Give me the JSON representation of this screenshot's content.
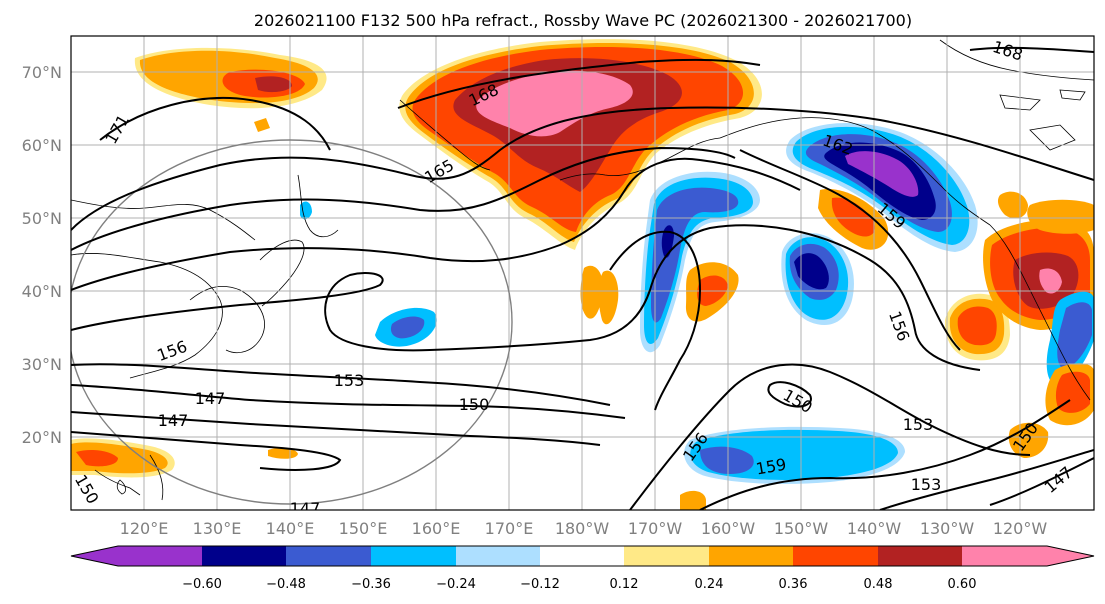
{
  "title": "2026021100 F132 500 hPa refract., Rossby Wave PC (2026021300 - 2026021700)",
  "map": {
    "lon_ticks": [
      "120°E",
      "130°E",
      "140°E",
      "150°E",
      "160°E",
      "170°E",
      "180°W",
      "170°W",
      "160°W",
      "150°W",
      "140°W",
      "130°W",
      "120°W"
    ],
    "lat_ticks": [
      "70°N",
      "60°N",
      "50°N",
      "40°N",
      "30°N",
      "20°N"
    ],
    "contour_labels": [
      "168",
      "168",
      "171",
      "165",
      "162",
      "159",
      "156",
      "156",
      "156",
      "153",
      "153",
      "153",
      "150",
      "150",
      "150",
      "150",
      "147",
      "147",
      "147",
      "159",
      "147"
    ]
  },
  "colorbar": {
    "ticks": [
      "−0.60",
      "−0.48",
      "−0.36",
      "−0.24",
      "−0.12",
      "0.12",
      "0.24",
      "0.36",
      "0.48",
      "0.60"
    ],
    "colors": [
      "#9932CC",
      "#00008B",
      "#3B5BD1",
      "#00BFFF",
      "#ADDFFF",
      "#FFFFFF",
      "#FFE987",
      "#FFA500",
      "#FF4500",
      "#B22222",
      "#FF82AB"
    ]
  },
  "colors": {
    "pink": "#FF82AB",
    "darkred": "#B22222",
    "orangered": "#FF4500",
    "orange": "#FFA500",
    "yellow": "#FFE987",
    "lightblue": "#ADDFFF",
    "skyblue": "#00BFFF",
    "royal": "#3B5BD1",
    "navy": "#00008B",
    "purple": "#9932CC"
  }
}
